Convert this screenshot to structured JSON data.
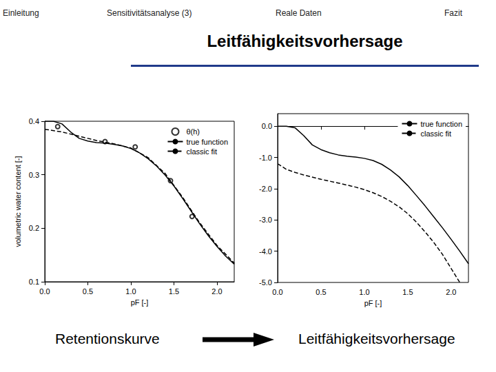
{
  "header": {
    "nav": [
      "Einleitung",
      "Sensitivitätsanalyse (3)",
      "Reale Daten",
      "Fazit"
    ]
  },
  "title": "Leitfähigkeitsvorhersage",
  "captions": [
    "Retentionskurve",
    "Leitfähigkeitsvorhersage"
  ],
  "chart_data": [
    {
      "type": "line",
      "x_label": "pF [-]",
      "y_label": "volumetric water content [-]",
      "xlim": [
        0,
        2.2
      ],
      "xticks": [
        {
          "value": 0,
          "label": "0.0"
        },
        {
          "value": 0.5,
          "label": "0.5"
        },
        {
          "value": 1,
          "label": "1.0"
        },
        {
          "value": 1.5,
          "label": "1.5"
        },
        {
          "value": 2,
          "label": "2.0"
        }
      ],
      "ylim": [
        0.1,
        0.4
      ],
      "yticks": [
        0.1,
        0.2,
        0.3,
        0.4
      ],
      "grid": false,
      "legend": "upper right",
      "series": [
        {
          "name": "θ(h)",
          "type": "scatter",
          "marker": "circle",
          "color": "#000000",
          "x": [
            0.15,
            0.7,
            1.05,
            1.46,
            1.71
          ],
          "values": [
            0.39,
            0.362,
            0.352,
            0.289,
            0.222
          ]
        },
        {
          "name": "true function",
          "type": "line",
          "line_style": "solid",
          "color": "#000000",
          "x": [
            0,
            0.1,
            0.2,
            0.3,
            0.4,
            0.5,
            0.6,
            0.7,
            0.8,
            0.9,
            1.0,
            1.1,
            1.2,
            1.3,
            1.4,
            1.5,
            1.6,
            1.7,
            1.8,
            1.9,
            2.0,
            2.1,
            2.2
          ],
          "values": [
            0.4,
            0.4,
            0.395,
            0.38,
            0.368,
            0.363,
            0.36,
            0.359,
            0.357,
            0.354,
            0.349,
            0.341,
            0.33,
            0.316,
            0.299,
            0.279,
            0.256,
            0.232,
            0.208,
            0.186,
            0.166,
            0.148,
            0.133
          ]
        },
        {
          "name": "classic fit",
          "type": "line",
          "line_style": "dashed",
          "color": "#000000",
          "x": [
            0,
            0.2,
            0.4,
            0.6,
            0.8,
            1.0,
            1.2,
            1.4,
            1.6,
            1.8,
            2.0,
            2.2
          ],
          "values": [
            0.385,
            0.38,
            0.372,
            0.364,
            0.358,
            0.35,
            0.332,
            0.302,
            0.258,
            0.21,
            0.168,
            0.135
          ]
        }
      ]
    },
    {
      "type": "line",
      "x_label": "pF [-]",
      "xlim": [
        0,
        2.2
      ],
      "xticks": [
        {
          "value": 0,
          "label": "0.0"
        },
        {
          "value": 0.5,
          "label": "0.5"
        },
        {
          "value": 1,
          "label": "1.0"
        },
        {
          "value": 1.5,
          "label": "1.5"
        },
        {
          "value": 2,
          "label": "2.0"
        }
      ],
      "ylim": [
        -5,
        0.4
      ],
      "yticks": [
        {
          "value": -5,
          "label": "-5.0"
        },
        {
          "value": -4,
          "label": "-4.0"
        },
        {
          "value": -3,
          "label": "-3.0"
        },
        {
          "value": -2,
          "label": "-2.0"
        },
        {
          "value": -1,
          "label": "-1.0"
        },
        {
          "value": 0,
          "label": "0.0"
        }
      ],
      "grid": false,
      "legend": "upper right",
      "series": [
        {
          "name": "true function",
          "type": "line",
          "line_style": "solid",
          "color": "#000000",
          "x": [
            0,
            0.1,
            0.2,
            0.3,
            0.4,
            0.5,
            0.6,
            0.7,
            0.8,
            0.9,
            1.0,
            1.1,
            1.2,
            1.3,
            1.4,
            1.5,
            1.6,
            1.7,
            1.8,
            1.9,
            2.0,
            2.1,
            2.2
          ],
          "values": [
            0,
            0,
            -0.05,
            -0.3,
            -0.6,
            -0.75,
            -0.85,
            -0.92,
            -0.96,
            -0.99,
            -1.03,
            -1.1,
            -1.22,
            -1.4,
            -1.62,
            -1.9,
            -2.22,
            -2.55,
            -2.9,
            -3.25,
            -3.62,
            -4.0,
            -4.4
          ]
        },
        {
          "name": "classic fit",
          "type": "line",
          "line_style": "dashed",
          "color": "#000000",
          "x": [
            0,
            0.1,
            0.2,
            0.3,
            0.5,
            0.7,
            0.9,
            1.0,
            1.1,
            1.2,
            1.3,
            1.4,
            1.5,
            1.6,
            1.7,
            1.8,
            1.9,
            2.0,
            2.1
          ],
          "values": [
            -1.2,
            -1.38,
            -1.48,
            -1.56,
            -1.7,
            -1.82,
            -1.95,
            -2.03,
            -2.13,
            -2.25,
            -2.4,
            -2.58,
            -2.8,
            -3.07,
            -3.38,
            -3.72,
            -4.1,
            -4.55,
            -5.0
          ]
        }
      ]
    }
  ]
}
